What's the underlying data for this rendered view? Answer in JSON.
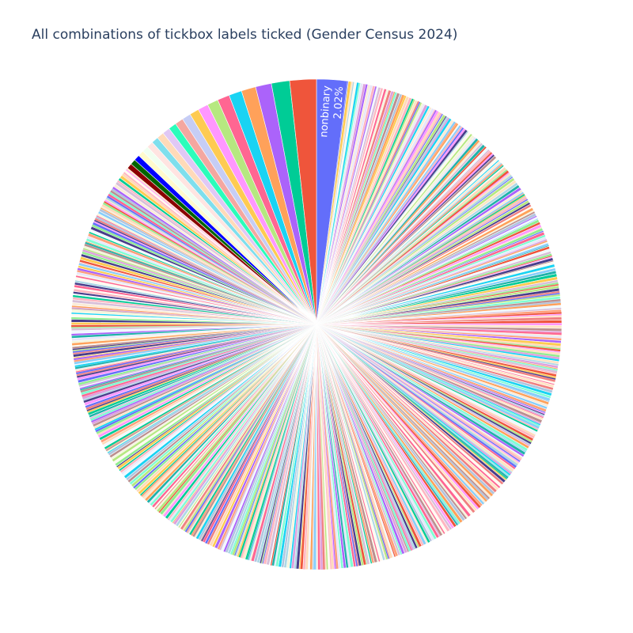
{
  "chart_data": {
    "type": "pie",
    "title": "All combinations of tickbox labels ticked (Gender Census 2024)",
    "direction": "clockwise",
    "start": "12 o'clock",
    "labelled_slices": [
      {
        "label": "nonbinary",
        "percent_text": "2.02%",
        "value": 2.02,
        "color": "#636efa"
      }
    ],
    "unlabelled_slices_first_ccw": [
      {
        "value": 1.75,
        "color": "#ef553b"
      },
      {
        "value": 1.2,
        "color": "#00cc96"
      },
      {
        "value": 1.05,
        "color": "#ab63fa"
      },
      {
        "value": 0.95,
        "color": "#ffa15a"
      },
      {
        "value": 0.85,
        "color": "#19d3f3"
      },
      {
        "value": 0.8,
        "color": "#ff6692"
      },
      {
        "value": 0.72,
        "color": "#b6e880"
      },
      {
        "value": 0.68,
        "color": "#ff97ff"
      },
      {
        "value": 0.62,
        "color": "#fecb52"
      },
      {
        "value": 0.58,
        "color": "#c6cdf5"
      },
      {
        "value": 0.55,
        "color": "#f4a7a0"
      },
      {
        "value": 0.52,
        "color": "#2bfdbb"
      },
      {
        "value": 0.49,
        "color": "#e0c8f5"
      },
      {
        "value": 0.47,
        "color": "#ffdab9"
      },
      {
        "value": 0.45,
        "color": "#7fdfed"
      },
      {
        "value": 0.43,
        "color": "#ffe4e1"
      },
      {
        "value": 0.41,
        "color": "#f0fff0"
      },
      {
        "value": 0.39,
        "color": "#fffacd"
      },
      {
        "value": 0.38,
        "color": "#0000ff"
      },
      {
        "value": 0.36,
        "color": "#006400"
      },
      {
        "value": 0.35,
        "color": "#8b0000"
      }
    ],
    "long_tail_count": 620,
    "tail_palette": [
      "#636efa",
      "#ef553b",
      "#00cc96",
      "#ab63fa",
      "#ffa15a",
      "#19d3f3",
      "#ff6692",
      "#b6e880",
      "#ff97ff",
      "#fecb52",
      "#f0f8ff",
      "#faebd7",
      "#7fffd4",
      "#f5f5dc",
      "#ffe4c4",
      "#483d8b",
      "#ffdab9",
      "#d8bfd8",
      "#87cefa",
      "#e6e6fa",
      "#bc8f8f",
      "#add8e6",
      "#f08080",
      "#90ee90",
      "#ffb6c1",
      "#ffa07a",
      "#20b2aa",
      "#b0c4de",
      "#dda0dd",
      "#fffaf0"
    ]
  }
}
